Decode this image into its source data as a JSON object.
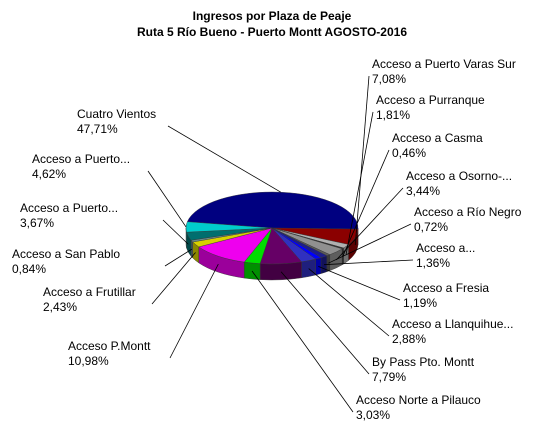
{
  "chart_data": {
    "type": "pie3d",
    "title": "Ingresos por Plaza de Peaje",
    "subtitle": "Ruta 5 Río Bueno - Puerto Montt AGOSTO-2016",
    "categories": [
      "Cuatro Vientos",
      "Acceso a Puerto Varas Sur",
      "Acceso a Purranque",
      "Acceso a Casma",
      "Acceso a Osorno-...",
      "Acceso a Río Negro",
      "Acceso a...",
      "Acceso a Fresia",
      "Acceso a  Llanquihue...",
      "By Pass Pto. Montt",
      "Acceso Norte a Pilauco",
      "Acceso P.Montt",
      "Acceso a Frutillar",
      "Acceso a San Pablo",
      "Acceso a Puerto...",
      "Acceso a Puerto..."
    ],
    "values": [
      47.71,
      7.08,
      1.81,
      0.46,
      3.44,
      0.72,
      1.36,
      1.19,
      2.88,
      7.79,
      3.03,
      10.98,
      2.43,
      0.84,
      3.67,
      4.62
    ],
    "value_labels": [
      "47,71%",
      "7,08%",
      "1,81%",
      "0,46%",
      "3,44%",
      "0,72%",
      "1,36%",
      "1,19%",
      "2,88%",
      "7,79%",
      "3,03%",
      "10,98%",
      "2,43%",
      "0,84%",
      "3,67%",
      "4,62%"
    ],
    "colors": [
      "#000080",
      "#8b0000",
      "#b0b0b0",
      "#303030",
      "#909090",
      "#5a5a5a",
      "#1c1c8c",
      "#0000ff",
      "#3030c0",
      "#660066",
      "#00dd00",
      "#ee00ee",
      "#d8d000",
      "#6a8a8a",
      "#006e6e",
      "#00cccc"
    ]
  }
}
